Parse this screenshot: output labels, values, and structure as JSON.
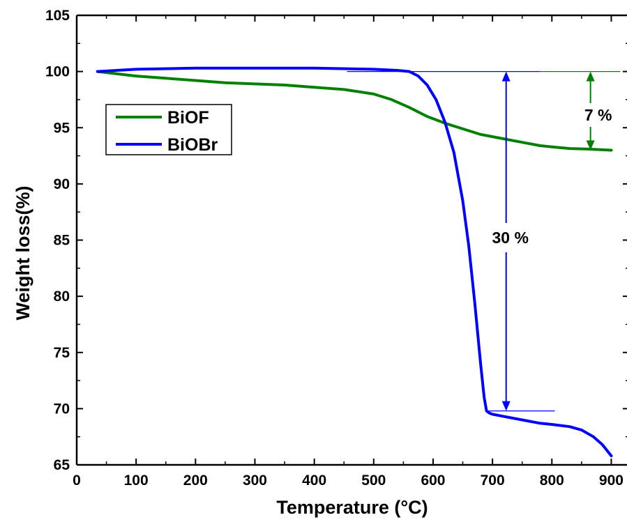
{
  "chart_data": {
    "type": "line",
    "title": "",
    "xlabel": "Temperature (°C)",
    "ylabel": "Weight loss(%)",
    "xlim": [
      0,
      930
    ],
    "ylim": [
      65,
      105
    ],
    "xticks": [
      0,
      100,
      200,
      300,
      400,
      500,
      600,
      700,
      800,
      900
    ],
    "yticks": [
      65,
      70,
      75,
      80,
      85,
      90,
      95,
      100,
      105
    ],
    "grid": false,
    "legend_position": "upper-left",
    "series": [
      {
        "name": "BiOF",
        "color": "#008000",
        "x": [
          35,
          100,
          150,
          200,
          250,
          300,
          350,
          400,
          450,
          500,
          530,
          560,
          590,
          620,
          650,
          680,
          700,
          720,
          750,
          780,
          800,
          830,
          860,
          900
        ],
        "y": [
          100.0,
          99.6,
          99.4,
          99.2,
          99.0,
          98.9,
          98.8,
          98.6,
          98.4,
          98.0,
          97.5,
          96.8,
          96.0,
          95.4,
          94.9,
          94.4,
          94.2,
          94.0,
          93.7,
          93.4,
          93.3,
          93.15,
          93.1,
          93.0
        ]
      },
      {
        "name": "BiOBr",
        "color": "#0000ff",
        "x": [
          35,
          100,
          200,
          300,
          400,
          500,
          540,
          560,
          575,
          590,
          605,
          620,
          635,
          650,
          660,
          670,
          680,
          686,
          690,
          695,
          700,
          720,
          750,
          780,
          800,
          830,
          850,
          870,
          885,
          900
        ],
        "y": [
          100.0,
          100.2,
          100.3,
          100.3,
          100.3,
          100.2,
          100.1,
          100.0,
          99.6,
          98.8,
          97.5,
          95.5,
          92.8,
          88.5,
          84.5,
          79.5,
          74.0,
          71.0,
          69.8,
          69.6,
          69.5,
          69.3,
          69.0,
          68.7,
          68.6,
          68.4,
          68.1,
          67.5,
          66.8,
          65.8
        ]
      }
    ],
    "annotations": [
      {
        "text": "7 %",
        "color": "#008000",
        "x": 865,
        "y_from": 100,
        "y_to": 93
      },
      {
        "text": "30 %",
        "color": "#0000ff",
        "x": 723,
        "y_from": 100,
        "y_to": 69.8
      }
    ]
  }
}
